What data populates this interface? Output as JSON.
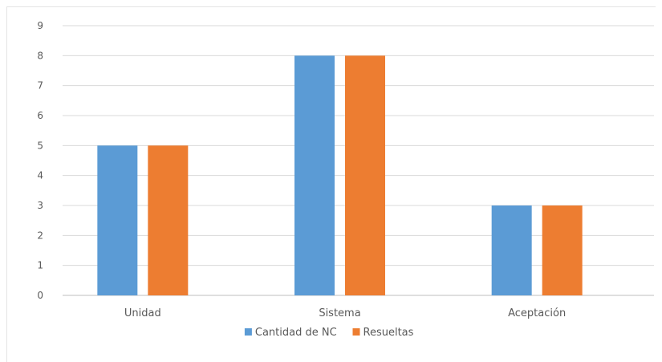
{
  "colors": {
    "series_0": "#5b9bd5",
    "series_1": "#ed7d31",
    "grid": "#d9d9d9",
    "axis": "#bfbfbf",
    "text": "#595959"
  },
  "chart_data": {
    "type": "bar",
    "title": "",
    "xlabel": "",
    "ylabel": "",
    "categories": [
      "Unidad",
      "Sistema",
      "Aceptación"
    ],
    "series": [
      {
        "name": "Cantidad de NC",
        "values": [
          5,
          8,
          3
        ]
      },
      {
        "name": "Resueltas",
        "values": [
          5,
          8,
          3
        ]
      }
    ],
    "ylim": [
      0,
      9
    ],
    "yticks": [
      0,
      1,
      2,
      3,
      4,
      5,
      6,
      7,
      8,
      9
    ],
    "grid": true,
    "legend_position": "bottom"
  }
}
